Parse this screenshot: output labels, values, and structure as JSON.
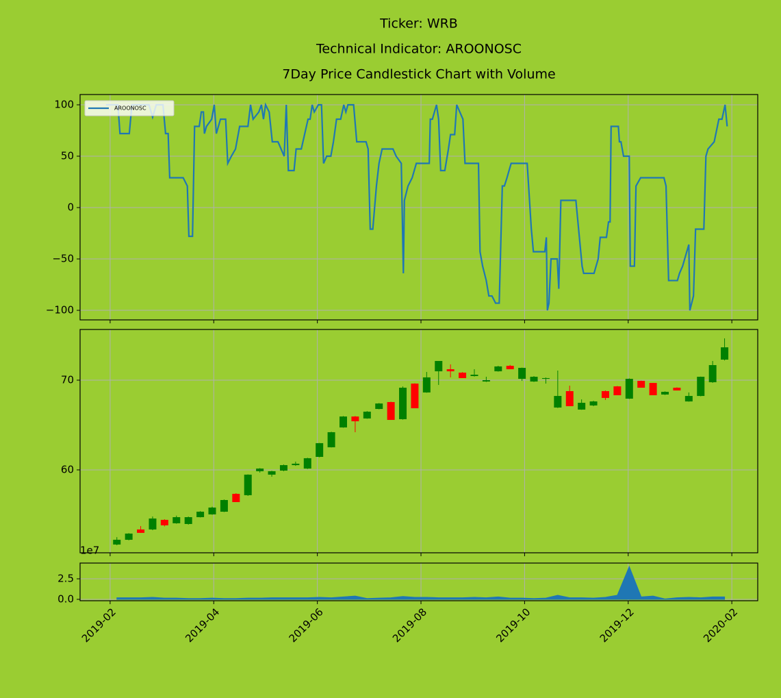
{
  "chart_data": [
    {
      "type": "line",
      "title": [
        "Ticker: WRB",
        "Technical Indicator: AROONOSC",
        "7Day Price Candlestick Chart with Volume"
      ],
      "series": [
        {
          "name": "AROONOSC",
          "color": "#1f77b4",
          "x": [
            0.92,
            1.15,
            1.19,
            1.37,
            1.42,
            1.75,
            1.82,
            1.89,
            2.02,
            2.07,
            2.12,
            2.15,
            2.41,
            2.49,
            2.52,
            2.59,
            2.63,
            2.72,
            2.76,
            2.8,
            2.82,
            2.86,
            2.96,
            3.01,
            3.05,
            3.13,
            3.23,
            3.27,
            3.34,
            3.42,
            3.5,
            3.66,
            3.71,
            3.76,
            3.87,
            3.92,
            3.96,
            4.0,
            4.07,
            4.13,
            4.24,
            4.36,
            4.4,
            4.44,
            4.55,
            4.59,
            4.69,
            4.82,
            4.86,
            4.9,
            4.94,
            5.02,
            5.08,
            5.12,
            5.18,
            5.26,
            5.31,
            5.37,
            5.45,
            5.51,
            5.55,
            5.59,
            5.7,
            5.76,
            5.94,
            5.98,
            6.02,
            6.07,
            6.14,
            6.19,
            6.25,
            6.46,
            6.52,
            6.62,
            6.66,
            6.68,
            6.75,
            6.83,
            6.91,
            7.16,
            7.18,
            7.22,
            7.3,
            7.34,
            7.38,
            7.46,
            7.53,
            7.57,
            7.65,
            7.69,
            7.75,
            7.81,
            7.85,
            8.11,
            8.14,
            8.19,
            8.26,
            8.31,
            8.37,
            8.44,
            8.51,
            8.57,
            8.61,
            8.66,
            8.74,
            9.05,
            9.13,
            9.17,
            9.39,
            9.42,
            9.44,
            9.47,
            9.51,
            9.63,
            9.66,
            9.7,
            9.99,
            10.11,
            10.14,
            10.34,
            10.42,
            10.46,
            10.58,
            10.62,
            10.65,
            10.67,
            10.81,
            10.83,
            10.86,
            10.91,
            11.02,
            11.04,
            11.12,
            11.15,
            11.24,
            11.69,
            11.73,
            11.78,
            11.95,
            11.99,
            12.05,
            12.17,
            12.19,
            12.26,
            12.3,
            12.46,
            12.5,
            12.54,
            12.66,
            12.75,
            12.81,
            12.87,
            12.91
          ],
          "values": [
            100,
            100,
            72,
            72,
            100,
            100,
            88,
            100,
            100,
            72,
            72,
            29,
            29,
            21,
            -28,
            -28,
            79,
            79,
            93,
            93,
            72,
            79,
            86,
            100,
            72,
            86,
            86,
            43,
            50,
            57,
            79,
            79,
            100,
            86,
            93,
            100,
            86,
            100,
            93,
            64,
            64,
            50,
            100,
            36,
            36,
            57,
            57,
            86,
            86,
            100,
            93,
            100,
            100,
            43,
            50,
            50,
            64,
            86,
            86,
            100,
            93,
            100,
            100,
            64,
            64,
            57,
            -21,
            -21,
            21,
            43,
            57,
            57,
            50,
            43,
            -64,
            7,
            21,
            29,
            43,
            43,
            86,
            86,
            100,
            86,
            36,
            36,
            57,
            71,
            71,
            100,
            93,
            86,
            43,
            43,
            -43,
            -57,
            -71,
            -86,
            -86,
            -93,
            -93,
            21,
            21,
            29,
            43,
            43,
            -21,
            -43,
            -43,
            -29,
            -100,
            -93,
            -50,
            -50,
            -79,
            7,
            7,
            -57,
            -64,
            -64,
            -50,
            -29,
            -29,
            -14,
            -14,
            79,
            79,
            64,
            64,
            50,
            50,
            -57,
            -57,
            21,
            29,
            29,
            21,
            -71,
            -71,
            -64,
            -57,
            -36,
            -100,
            -86,
            -21,
            -21,
            50,
            57,
            64,
            86,
            86,
            100,
            79
          ]
        }
      ],
      "ylim": [
        -109.3,
        110
      ],
      "yticks": [
        {
          "value": -100,
          "label": "−100"
        },
        {
          "value": -50,
          "label": "−50"
        },
        0,
        50,
        100
      ],
      "grid": true,
      "legend": "upper left"
    },
    {
      "type": "candlestick",
      "up_color": "green",
      "down_color": "red",
      "x": [
        1.13,
        1.36,
        1.59,
        1.82,
        2.05,
        2.28,
        2.51,
        2.74,
        2.97,
        3.2,
        3.43,
        3.66,
        3.89,
        4.12,
        4.35,
        4.58,
        4.81,
        5.04,
        5.27,
        5.5,
        5.73,
        5.96,
        6.19,
        6.42,
        6.65,
        6.88,
        7.11,
        7.34,
        7.57,
        7.8,
        8.03,
        8.26,
        8.49,
        8.72,
        8.95,
        9.18,
        9.41,
        9.64,
        9.87,
        10.1,
        10.33,
        10.56,
        10.79,
        11.02,
        11.25,
        11.48,
        11.71,
        11.94,
        12.17,
        12.4,
        12.63,
        12.86
      ],
      "open": [
        51.68,
        52.21,
        53.36,
        53.36,
        54.43,
        54.05,
        53.97,
        54.73,
        55.04,
        55.34,
        57.33,
        57.18,
        59.85,
        59.47,
        59.92,
        60.53,
        60.15,
        61.45,
        62.52,
        64.73,
        65.95,
        65.73,
        66.79,
        67.56,
        65.65,
        69.62,
        68.63,
        70.99,
        71.22,
        70.84,
        70.46,
        69.85,
        70.99,
        71.6,
        70.15,
        69.85,
        70.15,
        66.95,
        68.78,
        66.72,
        67.18,
        68.78,
        69.31,
        67.94,
        69.92,
        69.69,
        68.4,
        69.16,
        67.63,
        68.24,
        69.77,
        72.29
      ],
      "high": [
        52.5,
        52.95,
        53.74,
        54.81,
        54.5,
        54.9,
        54.8,
        55.4,
        55.9,
        56.7,
        57.4,
        59.5,
        60.2,
        59.9,
        60.6,
        60.92,
        61.35,
        63.0,
        64.25,
        66.0,
        66.0,
        66.55,
        67.45,
        67.6,
        69.3,
        69.65,
        70.92,
        72.14,
        71.76,
        70.9,
        71.22,
        70.38,
        71.6,
        71.7,
        71.4,
        70.45,
        70.3,
        71.07,
        69.39,
        67.86,
        67.7,
        68.85,
        69.35,
        70.2,
        69.95,
        69.7,
        68.75,
        69.2,
        68.63,
        70.4,
        72.14,
        74.66
      ],
      "low": [
        51.6,
        52.15,
        52.98,
        53.28,
        53.7,
        54.0,
        53.9,
        54.7,
        55.0,
        55.3,
        56.41,
        57.1,
        59.7,
        59.24,
        59.85,
        60.45,
        60.1,
        61.4,
        62.5,
        64.7,
        64.2,
        65.7,
        66.75,
        65.57,
        65.6,
        66.87,
        68.6,
        69.47,
        70.31,
        70.23,
        70.4,
        69.8,
        70.95,
        71.22,
        69.92,
        69.8,
        69.62,
        66.9,
        67.1,
        66.7,
        67.1,
        67.79,
        68.32,
        67.9,
        69.16,
        68.32,
        68.35,
        68.85,
        67.6,
        68.2,
        69.7,
        72.2
      ],
      "close": [
        52.21,
        52.9,
        52.98,
        54.58,
        53.82,
        54.73,
        54.73,
        55.34,
        55.8,
        56.64,
        56.41,
        59.47,
        60.15,
        59.85,
        60.53,
        60.69,
        61.3,
        62.98,
        64.2,
        65.95,
        65.42,
        66.49,
        67.4,
        65.57,
        69.16,
        66.87,
        70.31,
        72.14,
        70.99,
        70.23,
        70.61,
        70.0,
        71.53,
        71.22,
        71.37,
        70.38,
        70.23,
        68.24,
        67.1,
        67.48,
        67.63,
        68.02,
        68.32,
        70.15,
        69.16,
        68.32,
        68.7,
        68.85,
        68.24,
        70.38,
        71.68,
        73.66
      ],
      "ylim": [
        50.76,
        75.65
      ],
      "yticks": [
        60,
        70
      ],
      "grid": true
    },
    {
      "type": "area",
      "color": "#1f77b4",
      "offset_label": "1e7",
      "x": [
        1.13,
        1.36,
        1.59,
        1.82,
        2.05,
        2.28,
        2.51,
        2.74,
        2.97,
        3.2,
        3.43,
        3.66,
        3.89,
        4.12,
        4.35,
        4.58,
        4.81,
        5.04,
        5.27,
        5.5,
        5.73,
        5.96,
        6.19,
        6.42,
        6.65,
        6.88,
        7.11,
        7.34,
        7.57,
        7.8,
        8.03,
        8.26,
        8.49,
        8.72,
        8.95,
        9.18,
        9.41,
        9.64,
        9.87,
        10.1,
        10.33,
        10.56,
        10.79,
        11.02,
        11.25,
        11.48,
        11.71,
        11.94,
        12.17,
        12.4,
        12.63,
        12.86
      ],
      "values": [
        0.2,
        0.2,
        0.2,
        0.25,
        0.15,
        0.15,
        0.1,
        0.1,
        0.15,
        0.1,
        0.1,
        0.15,
        0.15,
        0.2,
        0.2,
        0.2,
        0.2,
        0.25,
        0.2,
        0.3,
        0.4,
        0.1,
        0.15,
        0.2,
        0.35,
        0.25,
        0.25,
        0.2,
        0.2,
        0.2,
        0.25,
        0.2,
        0.3,
        0.15,
        0.15,
        0.1,
        0.15,
        0.5,
        0.2,
        0.2,
        0.15,
        0.25,
        0.5,
        4.0,
        0.3,
        0.4,
        0.05,
        0.2,
        0.25,
        0.2,
        0.3,
        0.3
      ],
      "ylim": [
        -0.17,
        4.42
      ],
      "yticks": [
        {
          "value": 0,
          "label": "0.0"
        },
        2.5
      ],
      "grid": true,
      "xlim": [
        0.42,
        13.5
      ],
      "xticks": [
        {
          "value": 1,
          "label": "2019-02"
        },
        {
          "value": 3,
          "label": "2019-04"
        },
        {
          "value": 5,
          "label": "2019-06"
        },
        {
          "value": 7,
          "label": "2019-08"
        },
        {
          "value": 9,
          "label": "2019-10"
        },
        {
          "value": 11,
          "label": "2019-12"
        },
        {
          "value": 13,
          "label": "2020-02"
        }
      ]
    }
  ]
}
